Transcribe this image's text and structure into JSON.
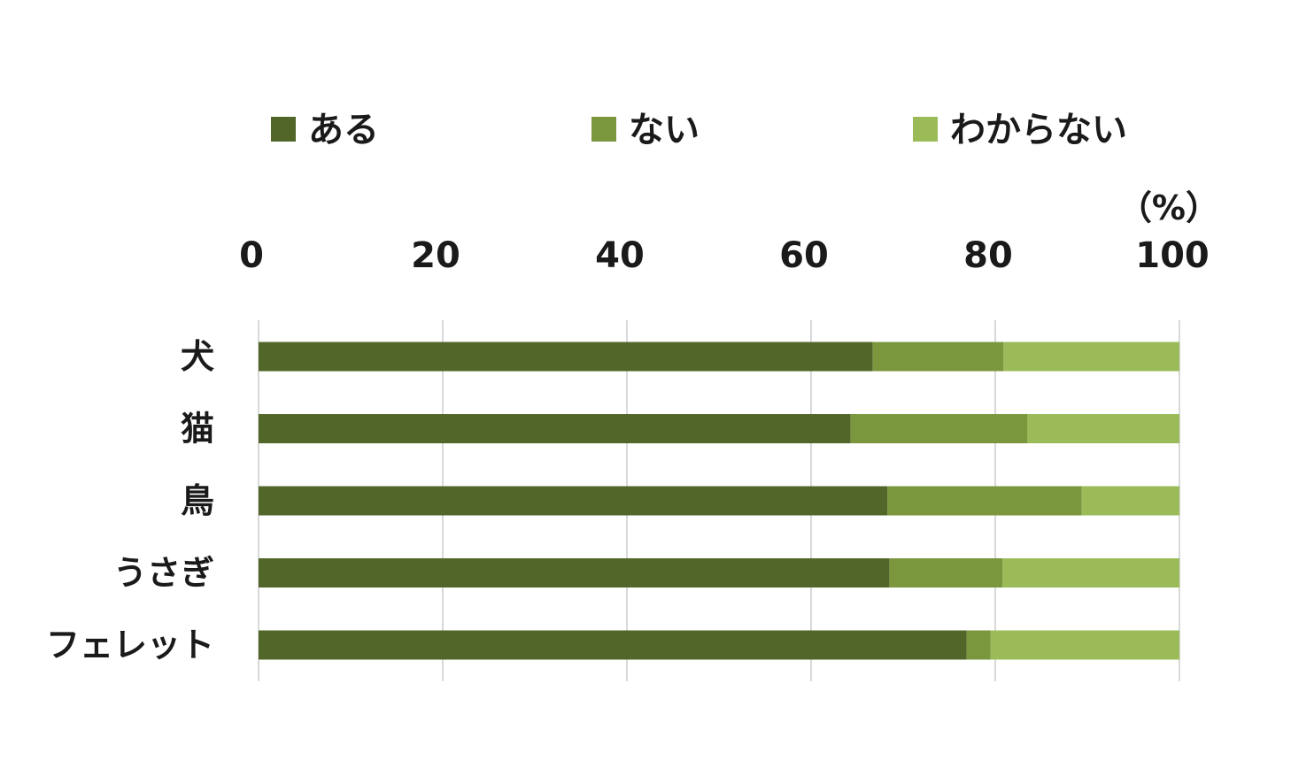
{
  "chart_data": {
    "type": "bar",
    "orientation": "horizontal",
    "stacked": true,
    "categories": [
      "犬",
      "猫",
      "鳥",
      "うさぎ",
      "フェレット"
    ],
    "series": [
      {
        "name": "ある",
        "color": "#526629",
        "values": [
          66.7,
          64.3,
          68.3,
          68.5,
          76.9
        ]
      },
      {
        "name": "ない",
        "color": "#7a973d",
        "values": [
          14.2,
          19.2,
          21.1,
          12.3,
          2.6
        ]
      },
      {
        "name": "わからない",
        "color": "#9bbb59",
        "values": [
          19.1,
          16.5,
          10.6,
          19.2,
          20.5
        ]
      }
    ],
    "xlim": [
      0,
      100
    ],
    "xticks": [
      "0",
      "20",
      "40",
      "60",
      "80",
      "100"
    ],
    "unit_label": "（%）",
    "grid": true,
    "legend_position": "top",
    "gridline_color": "#d9d9d9"
  }
}
